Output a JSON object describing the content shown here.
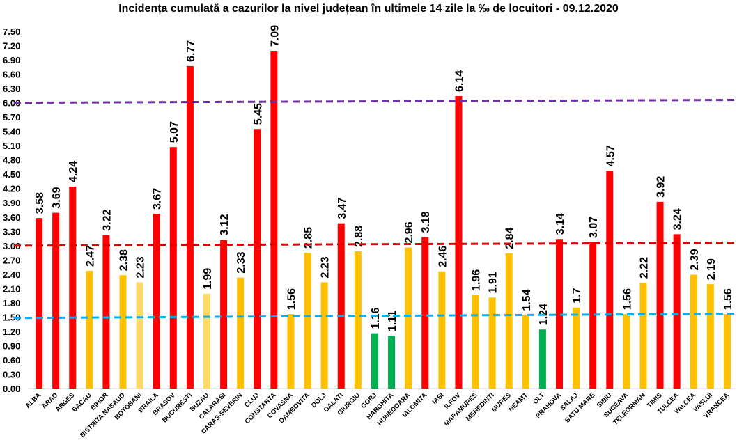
{
  "chart_data": {
    "type": "bar",
    "title": "Incidența cumulată a cazurilor la nivel județean în ultimele 14 zile la ‰ de locuitori - 09.12.2020",
    "xlabel": "",
    "ylabel": "",
    "ylim": [
      0,
      7.5
    ],
    "yticks": [
      "0.00",
      "0.30",
      "0.60",
      "0.90",
      "1.20",
      "1.50",
      "1.80",
      "2.10",
      "2.40",
      "2.70",
      "3.00",
      "3.30",
      "3.60",
      "3.90",
      "4.20",
      "4.50",
      "4.80",
      "5.10",
      "5.40",
      "5.70",
      "6.00",
      "6.30",
      "6.60",
      "6.90",
      "7.20",
      "7.50"
    ],
    "categories": [
      "ALBA",
      "ARAD",
      "ARGES",
      "BACAU",
      "BIHOR",
      "BISTRITA NASAUD",
      "BOTOSANI",
      "BRAILA",
      "BRASOV",
      "BUCURESTI",
      "BUZAU",
      "CALARASI",
      "CARAS-SEVERIN",
      "CLUJ",
      "CONSTANTA",
      "COVASNA",
      "DAMBOVITA",
      "DOLJ",
      "GALATI",
      "GIURGIU",
      "GORJ",
      "HARGHITA",
      "HUNEDOARA",
      "IALOMITA",
      "IASI",
      "ILFOV",
      "MARAMURES",
      "MEHEDINTI",
      "MURES",
      "NEAMT",
      "OLT",
      "PRAHOVA",
      "SALAJ",
      "SATU MARE",
      "SIBIU",
      "SUCEAVA",
      "TELEORMAN",
      "TIMIS",
      "TULCEA",
      "VALCEA",
      "VASLUI",
      "VRANCEA"
    ],
    "values": [
      3.58,
      3.69,
      4.24,
      2.47,
      3.22,
      2.38,
      2.23,
      3.67,
      5.07,
      6.77,
      1.99,
      3.12,
      2.33,
      5.45,
      7.09,
      1.56,
      2.85,
      2.23,
      3.47,
      2.88,
      1.16,
      1.11,
      2.96,
      3.18,
      2.46,
      6.14,
      1.96,
      1.91,
      2.84,
      1.54,
      1.24,
      3.14,
      1.7,
      3.07,
      4.57,
      1.56,
      2.22,
      3.92,
      3.24,
      2.39,
      2.19,
      1.56
    ],
    "value_labels": [
      "3.58",
      "3.69",
      "4.24",
      "2.47",
      "3.22",
      "2.38",
      "2.23",
      "3.67",
      "5.07",
      "6.77",
      "1.99",
      "3.12",
      "2.33",
      "5.45",
      "7.09",
      "1.56",
      "2.85",
      "2.23",
      "3.47",
      "2.88",
      "1.16",
      "1.11",
      "2.96",
      "3.18",
      "2.46",
      "6.14",
      "1.96",
      "1.91",
      "2.84",
      "1.54",
      "1.24",
      "3.14",
      "1.7",
      "3.07",
      "4.57",
      "1.56",
      "2.22",
      "3.92",
      "3.24",
      "2.39",
      "2.19",
      "1.56"
    ],
    "bar_colors": [
      "#ff0000",
      "#ff0000",
      "#ff0000",
      "#ffc000",
      "#ff0000",
      "#ffc000",
      "#ffd966",
      "#ff0000",
      "#ff0000",
      "#ff0000",
      "#ffd966",
      "#ff0000",
      "#ffc000",
      "#ff0000",
      "#ff0000",
      "#ffc000",
      "#ffc000",
      "#ffc000",
      "#ff0000",
      "#ffc000",
      "#00b050",
      "#00b050",
      "#ffc000",
      "#ff0000",
      "#ffc000",
      "#ff0000",
      "#ffc000",
      "#ffc000",
      "#ffc000",
      "#ffc000",
      "#00b050",
      "#ff0000",
      "#ffc000",
      "#ff0000",
      "#ff0000",
      "#ffc000",
      "#ffc000",
      "#ff0000",
      "#ff0000",
      "#ffc000",
      "#ffc000",
      "#ffc000"
    ],
    "reference_lines": [
      {
        "value_start": 6.0,
        "value_end": 6.06,
        "color": "#7030a0"
      },
      {
        "value_start": 3.0,
        "value_end": 3.06,
        "color": "#e00000"
      },
      {
        "value_start": 1.48,
        "value_end": 1.57,
        "color": "#00b0f0"
      }
    ],
    "grid": false,
    "legend": "none"
  }
}
